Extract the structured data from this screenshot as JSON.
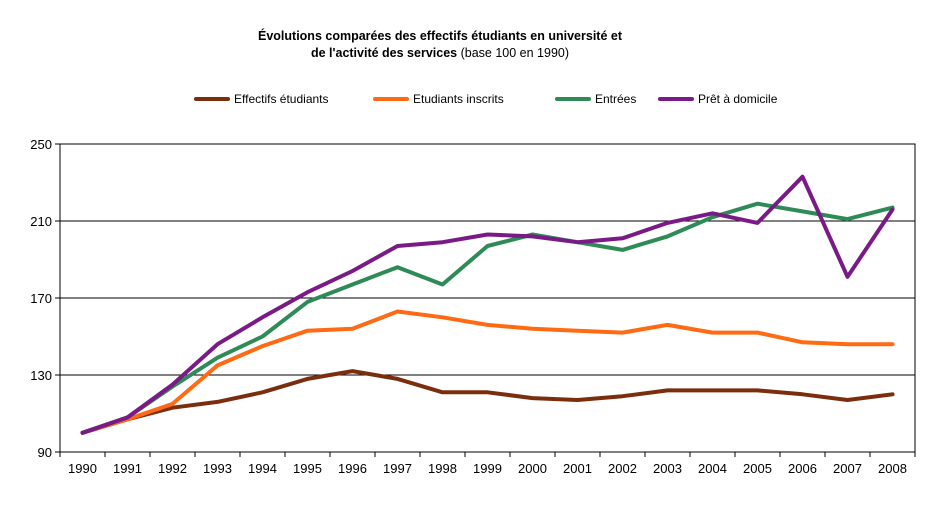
{
  "chart_data": {
    "type": "line",
    "title_line1": "Évolutions comparées des effectifs étudiants en université et",
    "title_line2_bold": "de l'activité des services",
    "title_line2_normal": "(base 100 en 1990)",
    "ylim": [
      90,
      250
    ],
    "yticks": [
      "250",
      "210",
      "170",
      "130",
      "90"
    ],
    "x": [
      "1990",
      "1991",
      "1992",
      "1993",
      "1994",
      "1995",
      "1996",
      "1997",
      "1998",
      "1999",
      "2000",
      "2001",
      "2002",
      "2003",
      "2004",
      "2005",
      "2006",
      "2007",
      "2008"
    ],
    "series": [
      {
        "name": "Effectifs étudiants",
        "color": "#7b2e0e",
        "values": [
          100,
          107,
          113,
          116,
          121,
          128,
          132,
          128,
          121,
          121,
          118,
          117,
          119,
          122,
          122,
          122,
          120,
          117,
          120
        ]
      },
      {
        "name": "Etudiants inscrits",
        "color": "#ff6a13",
        "values": [
          100,
          107,
          115,
          135,
          145,
          153,
          154,
          163,
          160,
          156,
          154,
          153,
          152,
          156,
          152,
          152,
          147,
          146,
          146
        ]
      },
      {
        "name": "Entrées",
        "color": "#2e8b57",
        "values": [
          100,
          108,
          124,
          139,
          150,
          168,
          177,
          186,
          177,
          197,
          203,
          199,
          195,
          202,
          212,
          219,
          215,
          211,
          217
        ]
      },
      {
        "name": "Prêt à domicile",
        "color": "#7a1a86",
        "values": [
          100,
          108,
          125,
          146,
          160,
          173,
          184,
          197,
          199,
          203,
          202,
          199,
          201,
          209,
          214,
          209,
          233,
          181,
          216
        ]
      }
    ]
  }
}
